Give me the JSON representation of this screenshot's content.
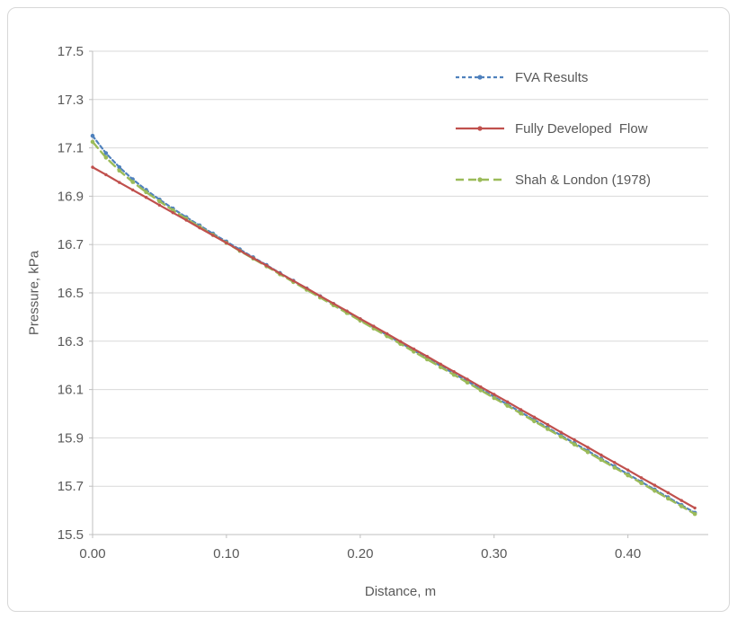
{
  "chart_data": {
    "type": "line",
    "title": "",
    "xlabel": "Distance, m",
    "ylabel": "Pressure, kPa",
    "xlim": [
      0,
      0.46
    ],
    "ylim": [
      15.5,
      17.5
    ],
    "grid": "horizontal",
    "legend_position": "inside-top-right",
    "colors": {
      "grid": "#d9d9d9",
      "axis": "#bfbfbf",
      "text": "#595959"
    },
    "x_tick_values": [
      0,
      0.1,
      0.2,
      0.3,
      0.4
    ],
    "x_tick_labels": [
      "0.00",
      "0.10",
      "0.20",
      "0.30",
      "0.40"
    ],
    "y_tick_values": [
      15.5,
      15.7,
      15.9,
      16.1,
      16.3,
      16.5,
      16.7,
      16.9,
      17.1,
      17.3,
      17.5
    ],
    "y_tick_labels": [
      "15.5",
      "15.7",
      "15.9",
      "16.1",
      "16.3",
      "16.5",
      "16.7",
      "16.9",
      "17.1",
      "17.3",
      "17.5"
    ],
    "x": [
      0.0,
      0.01,
      0.02,
      0.03,
      0.04,
      0.05,
      0.06,
      0.07,
      0.08,
      0.09,
      0.1,
      0.11,
      0.12,
      0.13,
      0.14,
      0.15,
      0.16,
      0.17,
      0.18,
      0.19,
      0.2,
      0.21,
      0.22,
      0.23,
      0.24,
      0.25,
      0.26,
      0.27,
      0.28,
      0.29,
      0.3,
      0.31,
      0.32,
      0.33,
      0.34,
      0.35,
      0.36,
      0.37,
      0.38,
      0.39,
      0.4,
      0.41,
      0.42,
      0.43,
      0.44,
      0.45
    ],
    "series": [
      {
        "name": "FVA Results",
        "color": "#4F81BD",
        "line_style": "dashed",
        "marker": "circle",
        "values": [
          17.15,
          17.078,
          17.02,
          16.97,
          16.926,
          16.886,
          16.849,
          16.813,
          16.779,
          16.745,
          16.712,
          16.68,
          16.647,
          16.615,
          16.582,
          16.55,
          16.518,
          16.486,
          16.454,
          16.422,
          16.39,
          16.358,
          16.326,
          16.294,
          16.262,
          16.23,
          16.198,
          16.166,
          16.134,
          16.102,
          16.07,
          16.038,
          16.006,
          15.974,
          15.942,
          15.91,
          15.878,
          15.846,
          15.814,
          15.782,
          15.75,
          15.718,
          15.686,
          15.654,
          15.622,
          15.59
        ]
      },
      {
        "name": "Fully Developed  Flow",
        "color": "#C0504D",
        "line_style": "solid",
        "marker": "circle",
        "values": [
          17.02,
          16.989,
          16.957,
          16.926,
          16.895,
          16.863,
          16.832,
          16.801,
          16.769,
          16.738,
          16.707,
          16.675,
          16.644,
          16.613,
          16.581,
          16.55,
          16.519,
          16.487,
          16.456,
          16.425,
          16.393,
          16.362,
          16.331,
          16.299,
          16.268,
          16.237,
          16.205,
          16.174,
          16.143,
          16.111,
          16.08,
          16.049,
          16.017,
          15.986,
          15.955,
          15.923,
          15.892,
          15.861,
          15.829,
          15.798,
          15.767,
          15.735,
          15.704,
          15.673,
          15.641,
          15.61
        ]
      },
      {
        "name": "Shah & London (1978)",
        "color": "#9BBB59",
        "line_style": "long-dashed",
        "marker": "circle",
        "values": [
          17.125,
          17.06,
          17.006,
          16.959,
          16.917,
          16.879,
          16.842,
          16.807,
          16.773,
          16.74,
          16.707,
          16.674,
          16.642,
          16.61,
          16.577,
          16.545,
          16.513,
          16.481,
          16.449,
          16.417,
          16.385,
          16.353,
          16.321,
          16.289,
          16.257,
          16.225,
          16.193,
          16.161,
          16.129,
          16.097,
          16.065,
          16.033,
          16.001,
          15.969,
          15.937,
          15.905,
          15.873,
          15.841,
          15.809,
          15.777,
          15.745,
          15.713,
          15.681,
          15.649,
          15.617,
          15.585
        ]
      }
    ]
  }
}
